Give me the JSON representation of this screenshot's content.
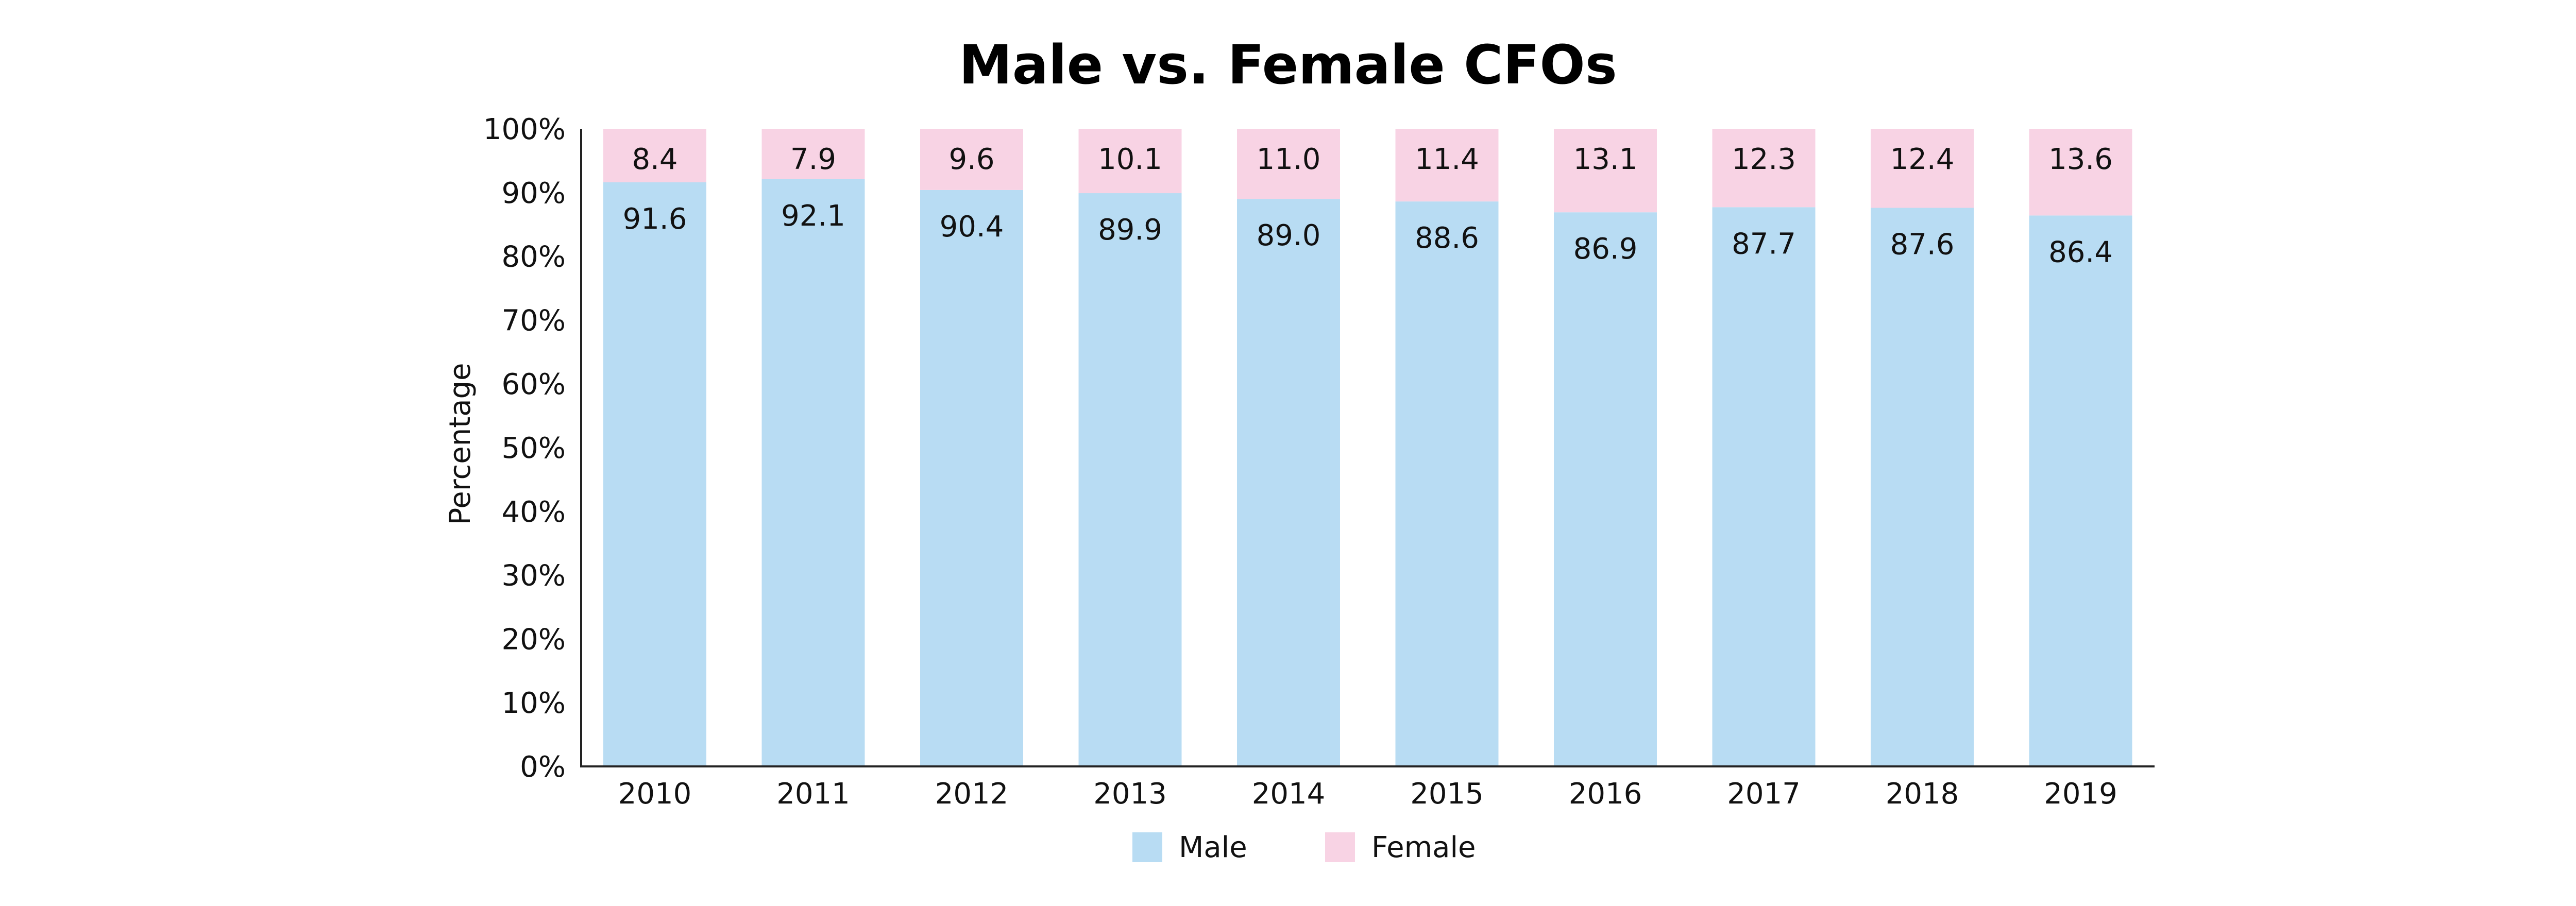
{
  "chart_data": {
    "type": "bar",
    "stacked": true,
    "title": "Male vs. Female CFOs",
    "xlabel": "",
    "ylabel": "Percentage",
    "ylim": [
      0,
      100
    ],
    "y_ticks": [
      "0%",
      "10%",
      "20%",
      "30%",
      "40%",
      "50%",
      "60%",
      "70%",
      "80%",
      "90%",
      "100%"
    ],
    "categories": [
      "2010",
      "2011",
      "2012",
      "2013",
      "2014",
      "2015",
      "2016",
      "2017",
      "2018",
      "2019"
    ],
    "series": [
      {
        "name": "Male",
        "color": "#b8dcf3",
        "values": [
          91.6,
          92.1,
          90.4,
          89.9,
          89.0,
          88.6,
          86.9,
          87.7,
          87.6,
          86.4
        ],
        "labels": [
          "91.6",
          "92.1",
          "90.4",
          "89.9",
          "89.0",
          "88.6",
          "86.9",
          "87.7",
          "87.6",
          "86.4"
        ]
      },
      {
        "name": "Female",
        "color": "#f8d3e4",
        "values": [
          8.4,
          7.9,
          9.6,
          10.1,
          11.0,
          11.4,
          13.1,
          12.3,
          12.4,
          13.6
        ],
        "labels": [
          "8.4",
          "7.9",
          "9.6",
          "10.1",
          "11.0",
          "11.4",
          "13.1",
          "12.3",
          "12.4",
          "13.6"
        ]
      }
    ],
    "grid": false,
    "legend_position": "bottom-center"
  }
}
